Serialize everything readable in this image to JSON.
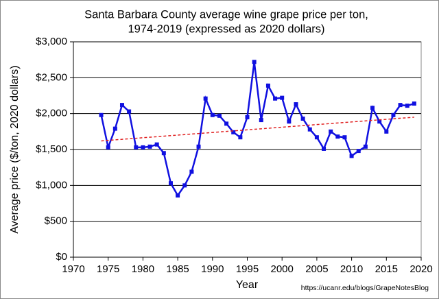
{
  "chart_data": {
    "type": "line",
    "title": [
      "Santa Barbara County average wine grape price per ton,",
      "1974-2019 (expressed as 2020 dollars)"
    ],
    "x_label": "Year",
    "y_label": "Average price ($/ton, 2020 dollars)",
    "source": "https://ucanr.edu/blogs/GrapeNotesBlog",
    "x": [
      1974,
      1975,
      1976,
      1977,
      1978,
      1979,
      1980,
      1981,
      1982,
      1983,
      1984,
      1985,
      1986,
      1987,
      1988,
      1989,
      1990,
      1991,
      1992,
      1993,
      1994,
      1995,
      1996,
      1997,
      1998,
      1999,
      2000,
      2001,
      2002,
      2003,
      2004,
      2005,
      2006,
      2007,
      2008,
      2009,
      2010,
      2011,
      2012,
      2013,
      2014,
      2015,
      2016,
      2017,
      2018,
      2019
    ],
    "series": [
      {
        "color": "#1010e0",
        "values": [
          1980,
          1530,
          1790,
          2120,
          2030,
          1530,
          1530,
          1540,
          1570,
          1450,
          1030,
          860,
          1000,
          1190,
          1540,
          2210,
          1980,
          1970,
          1860,
          1740,
          1670,
          1950,
          2720,
          1910,
          2390,
          2210,
          2220,
          1890,
          2130,
          1930,
          1780,
          1670,
          1510,
          1750,
          1680,
          1670,
          1410,
          1480,
          1540,
          2080,
          1890,
          1750,
          1980,
          2120,
          2110,
          2140
        ]
      }
    ],
    "trend": {
      "x": [
        1974,
        2019
      ],
      "values": [
        1620,
        1950
      ],
      "color": "#e02020"
    },
    "xlim": [
      1970,
      2020
    ],
    "xticks": [
      1970,
      1975,
      1980,
      1985,
      1990,
      1995,
      2000,
      2005,
      2010,
      2015,
      2020
    ],
    "ylim": [
      0,
      3000
    ],
    "yticks": [
      {
        "value": 0,
        "label": "$0"
      },
      {
        "value": 500,
        "label": "$500"
      },
      {
        "value": 1000,
        "label": "$1,000"
      },
      {
        "value": 1500,
        "label": "$1,500"
      },
      {
        "value": 2000,
        "label": "$2,000"
      },
      {
        "value": 2500,
        "label": "$2,500"
      },
      {
        "value": 3000,
        "label": "$3,000"
      }
    ],
    "grid": true
  }
}
